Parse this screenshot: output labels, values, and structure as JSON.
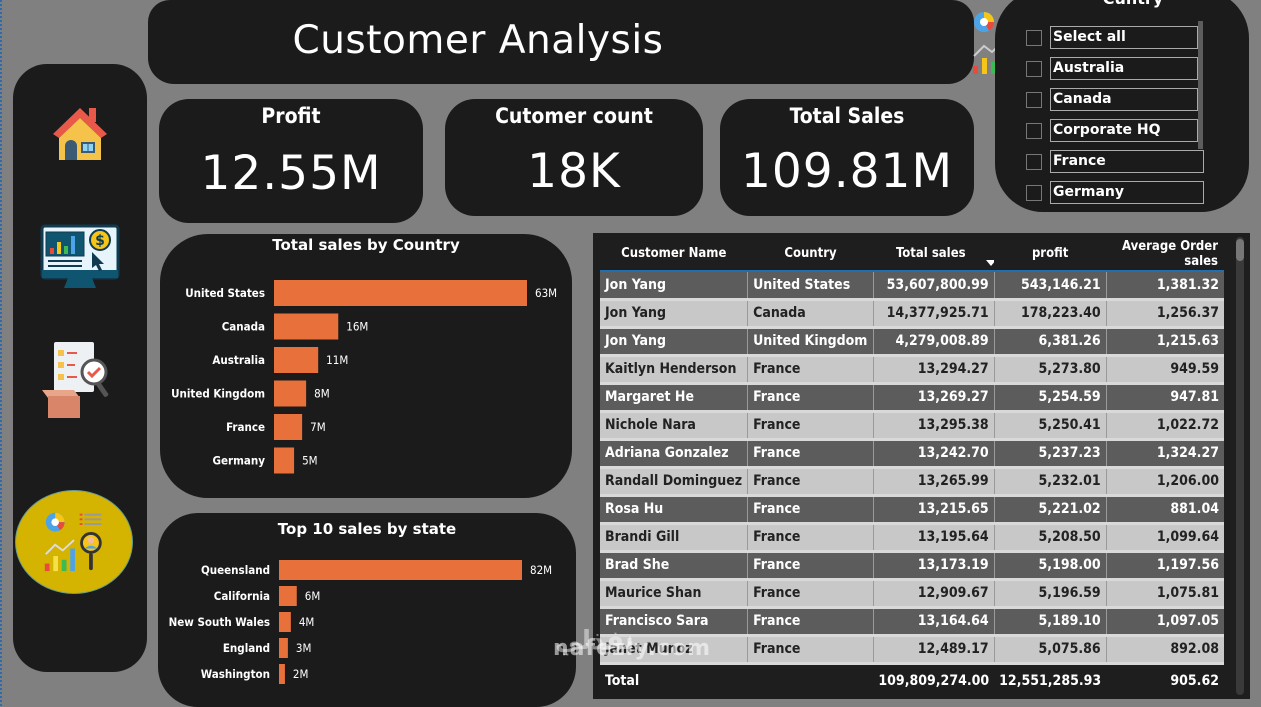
{
  "header": {
    "title": "Customer Analysis",
    "icon": "analytics-icon"
  },
  "sidebar": {
    "items": [
      {
        "name": "home",
        "icon": "house-icon",
        "active": false
      },
      {
        "name": "sales",
        "icon": "monitor-dollar-icon",
        "active": false
      },
      {
        "name": "products",
        "icon": "inventory-checklist-icon",
        "active": false
      },
      {
        "name": "customers",
        "icon": "analytics-icon",
        "active": true
      }
    ]
  },
  "kpis": {
    "profit": {
      "label": "Profit",
      "value": "12.55M"
    },
    "customers": {
      "label": "Cutomer count",
      "value": "18K"
    },
    "sales": {
      "label": "Total Sales",
      "value": "109.81M"
    }
  },
  "slicer": {
    "title": "Cuntry",
    "options": [
      "Select all",
      "Australia",
      "Canada",
      "Corporate HQ",
      "France",
      "Germany"
    ]
  },
  "colors": {
    "bar": "#e8703a",
    "panel": "#1b1b1b",
    "background": "#808080",
    "accent": "#1f6fb2",
    "active_nav": "#d4b400"
  },
  "chart_data": [
    {
      "type": "bar",
      "orientation": "horizontal",
      "title": "Total sales by Country",
      "categories": [
        "United States",
        "Canada",
        "Australia",
        "United Kingdom",
        "France",
        "Germany"
      ],
      "values": [
        63,
        16,
        11,
        8,
        7,
        5
      ],
      "labels": [
        "63M",
        "16M",
        "11M",
        "8M",
        "7M",
        "5M"
      ],
      "unit": "M",
      "xlim": [
        0,
        63
      ],
      "grid": false,
      "legend": "none"
    },
    {
      "type": "bar",
      "orientation": "horizontal",
      "title": "Top 10 sales by state",
      "categories": [
        "Queensland",
        "California",
        "New South Wales",
        "England",
        "Washington"
      ],
      "values": [
        82,
        6,
        4,
        3,
        2
      ],
      "labels": [
        "82M",
        "6M",
        "4M",
        "3M",
        "2M"
      ],
      "unit": "M",
      "xlim": [
        0,
        82
      ],
      "grid": false,
      "legend": "none"
    }
  ],
  "table": {
    "columns": [
      "Customer Name",
      "Country",
      "Total sales",
      "profit",
      "Average Order sales"
    ],
    "sorted_column": "profit",
    "rows": [
      [
        "Jon Yang",
        "United States",
        "53,607,800.99",
        "543,146.21",
        "1,381.32"
      ],
      [
        "Jon Yang",
        "Canada",
        "14,377,925.71",
        "178,223.40",
        "1,256.37"
      ],
      [
        "Jon Yang",
        "United Kingdom",
        "4,279,008.89",
        "6,381.26",
        "1,215.63"
      ],
      [
        "Kaitlyn Henderson",
        "France",
        "13,294.27",
        "5,273.80",
        "949.59"
      ],
      [
        "Margaret He",
        "France",
        "13,269.27",
        "5,254.59",
        "947.81"
      ],
      [
        "Nichole Nara",
        "France",
        "13,295.38",
        "5,250.41",
        "1,022.72"
      ],
      [
        "Adriana Gonzalez",
        "France",
        "13,242.70",
        "5,237.23",
        "1,324.27"
      ],
      [
        "Randall Dominguez",
        "France",
        "13,265.99",
        "5,232.01",
        "1,206.00"
      ],
      [
        "Rosa Hu",
        "France",
        "13,215.65",
        "5,221.02",
        "881.04"
      ],
      [
        "Brandi Gill",
        "France",
        "13,195.64",
        "5,208.50",
        "1,099.64"
      ],
      [
        "Brad She",
        "France",
        "13,173.19",
        "5,198.00",
        "1,197.56"
      ],
      [
        "Maurice Shan",
        "France",
        "12,909.67",
        "5,196.59",
        "1,075.81"
      ],
      [
        "Francisco Sara",
        "France",
        "13,164.64",
        "5,189.10",
        "1,097.05"
      ],
      [
        "Janet Munoz",
        "France",
        "12,489.17",
        "5,075.86",
        "892.08"
      ]
    ],
    "total": [
      "Total",
      "",
      "109,809,274.00",
      "12,551,285.93",
      "905.62"
    ]
  },
  "watermark": {
    "text": "nafezly.com",
    "logo": "نفذلي"
  }
}
